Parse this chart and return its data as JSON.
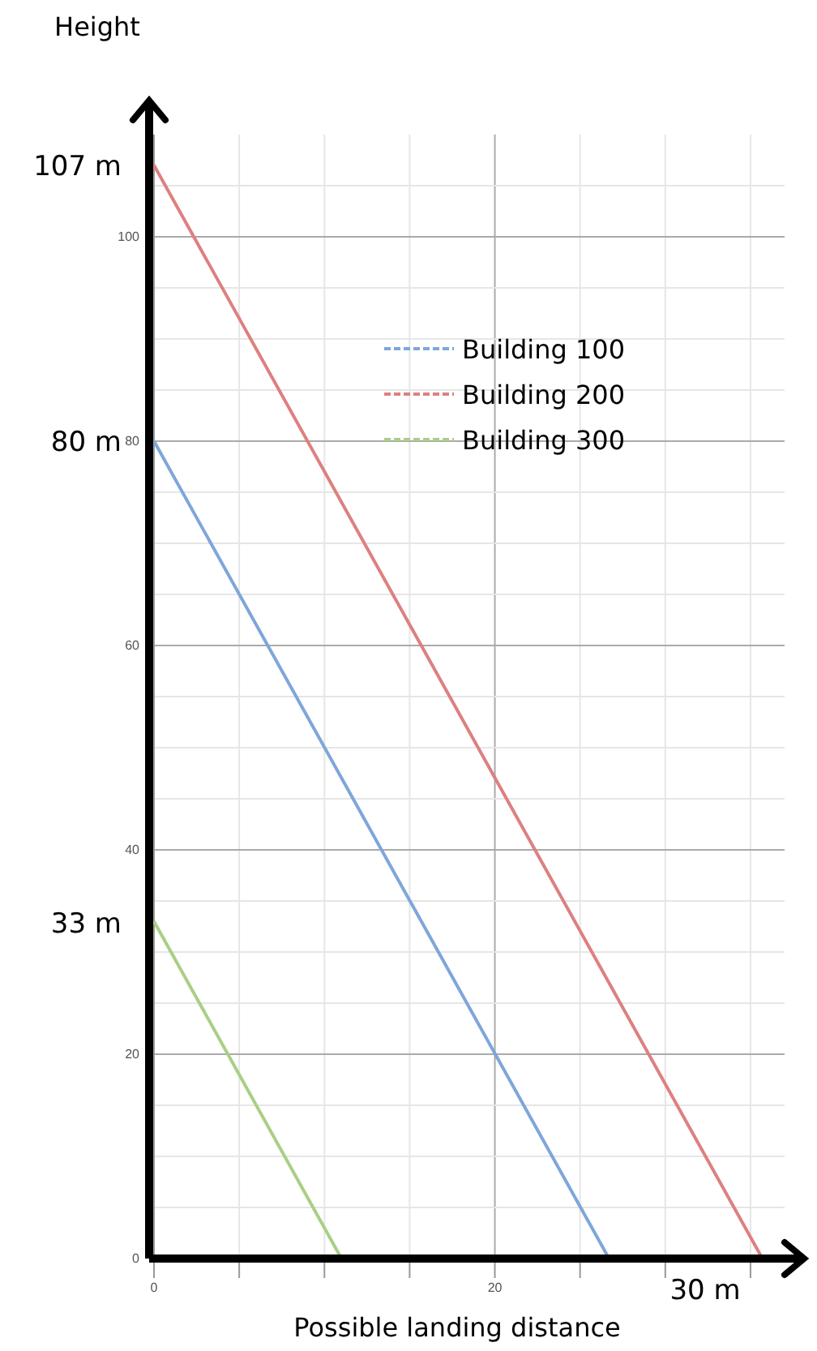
{
  "chart_data": {
    "type": "line",
    "xlabel": "Possible landing distance",
    "ylabel": "Height",
    "series": [
      {
        "name": "Building 100",
        "color": "#7fa6d9",
        "x": [
          0,
          26.7
        ],
        "values": [
          80,
          0
        ]
      },
      {
        "name": "Building 200",
        "color": "#dd8080",
        "x": [
          0,
          35.7
        ],
        "values": [
          107,
          0
        ]
      },
      {
        "name": "Building 300",
        "color": "#a9cf85",
        "x": [
          0,
          11
        ],
        "values": [
          33,
          0
        ]
      }
    ],
    "xlim": [
      0,
      37
    ],
    "ylim": [
      0,
      110
    ],
    "xticks": [
      0,
      {
        "value": 5,
        "label": null
      },
      {
        "value": 10,
        "label": null
      },
      {
        "value": 15,
        "label": null
      },
      20,
      {
        "value": 25,
        "label": null
      },
      {
        "value": 30,
        "label": null
      },
      {
        "value": 35,
        "label": null
      }
    ],
    "yticks": [
      0,
      {
        "value": 5,
        "label": null
      },
      {
        "value": 10,
        "label": null
      },
      {
        "value": 15,
        "label": null
      },
      20,
      {
        "value": 25,
        "label": null
      },
      {
        "value": 30,
        "label": null
      },
      {
        "value": 35,
        "label": null
      },
      40,
      {
        "value": 45,
        "label": null
      },
      {
        "value": 50,
        "label": null
      },
      {
        "value": 55,
        "label": null
      },
      60,
      {
        "value": 65,
        "label": null
      },
      {
        "value": 70,
        "label": null
      },
      {
        "value": 75,
        "label": null
      },
      80,
      {
        "value": 85,
        "label": null
      },
      {
        "value": 90,
        "label": null
      },
      {
        "value": 95,
        "label": null
      },
      100,
      {
        "value": 105,
        "label": null
      }
    ],
    "annotations": [
      "107 m",
      "80 m",
      "33 m",
      "30 m"
    ],
    "grid": true,
    "legend": "top right",
    "marker": "none",
    "line_style": "solid"
  }
}
